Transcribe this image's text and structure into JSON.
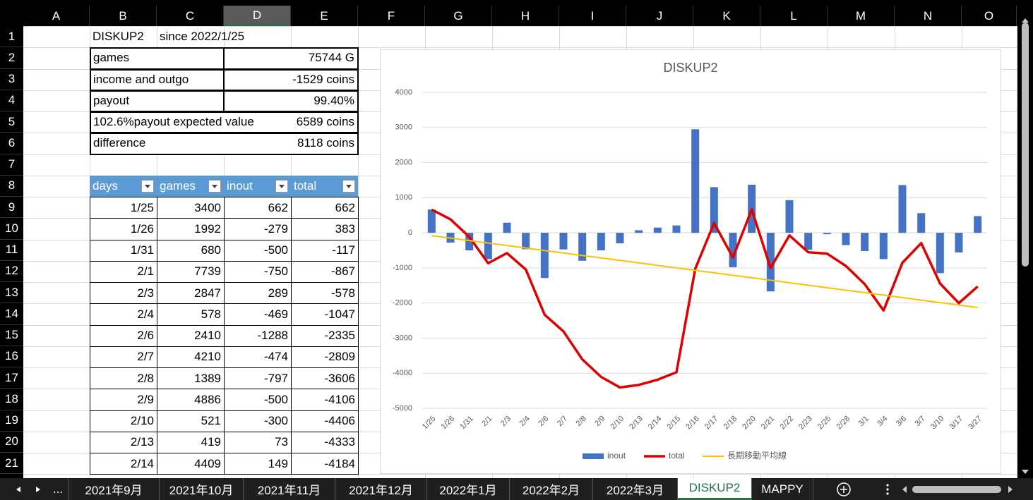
{
  "sheet": {
    "columns": [
      "A",
      "B",
      "C",
      "D",
      "E",
      "F",
      "G",
      "H",
      "I",
      "J",
      "K",
      "L",
      "M",
      "N",
      "O"
    ],
    "selected_column": 3,
    "rows": [
      1,
      2,
      3,
      4,
      5,
      6,
      7,
      8,
      9,
      10,
      11,
      12,
      13,
      14,
      15,
      16,
      17,
      18,
      19,
      20,
      21
    ],
    "header": {
      "title": "DISKUP2",
      "since": "since 2022/1/25"
    },
    "summary": [
      [
        "games",
        "75744 G"
      ],
      [
        "income and outgo",
        "-1529 coins"
      ],
      [
        "payout",
        "99.40%"
      ],
      [
        "102.6%payout expected value",
        "6589 coins"
      ],
      [
        "difference",
        "8118 coins"
      ]
    ],
    "table": {
      "headers": [
        "days",
        "games",
        "inout",
        "total"
      ],
      "rows": [
        [
          "1/25",
          3400,
          662,
          662
        ],
        [
          "1/26",
          1992,
          -279,
          383
        ],
        [
          "1/31",
          680,
          -500,
          -117
        ],
        [
          "2/1",
          7739,
          -750,
          -867
        ],
        [
          "2/3",
          2847,
          289,
          -578
        ],
        [
          "2/4",
          578,
          -469,
          -1047
        ],
        [
          "2/6",
          2410,
          -1288,
          -2335
        ],
        [
          "2/7",
          4210,
          -474,
          -2809
        ],
        [
          "2/8",
          1389,
          -797,
          -3606
        ],
        [
          "2/9",
          4886,
          -500,
          -4106
        ],
        [
          "2/10",
          521,
          -300,
          -4406
        ],
        [
          "2/13",
          419,
          73,
          -4333
        ],
        [
          "2/14",
          4409,
          149,
          -4184
        ]
      ]
    }
  },
  "tabs": [
    "...",
    "2021年9月",
    "2021年10月",
    "2021年11月",
    "2021年12月",
    "2022年1月",
    "2022年2月",
    "2022年3月",
    "DISKUP2",
    "MAPPY"
  ],
  "active_tab": 8,
  "chart_data": {
    "type": "combo",
    "title": "DISKUP2",
    "categories": [
      "1/25",
      "1/26",
      "1/31",
      "2/1",
      "2/3",
      "2/4",
      "2/6",
      "2/7",
      "2/8",
      "2/9",
      "2/10",
      "2/13",
      "2/14",
      "2/15",
      "2/16",
      "2/17",
      "2/18",
      "2/20",
      "2/21",
      "2/22",
      "2/23",
      "2/25",
      "2/28",
      "3/1",
      "3/4",
      "3/6",
      "3/7",
      "3/10",
      "3/17",
      "3/27"
    ],
    "series": [
      {
        "name": "inout",
        "type": "bar",
        "color": "#4472c4",
        "values": [
          662,
          -279,
          -500,
          -750,
          289,
          -469,
          -1288,
          -474,
          -797,
          -500,
          -300,
          73,
          149,
          210,
          2950,
          1300,
          -980,
          1370,
          -1670,
          930,
          -480,
          -40,
          -350,
          -520,
          -750,
          1360,
          560,
          -1150,
          -560,
          475
        ]
      },
      {
        "name": "total",
        "type": "line",
        "color": "#e00000",
        "values": [
          662,
          383,
          -117,
          -867,
          -578,
          -1047,
          -2335,
          -2809,
          -3606,
          -4106,
          -4406,
          -4333,
          -4184,
          -3974,
          -1024,
          276,
          -704,
          666,
          -1004,
          -74,
          -554,
          -594,
          -944,
          -1464,
          -2214,
          -854,
          -294,
          -1444,
          -2004,
          -1529
        ]
      },
      {
        "name": "長期移動平均線",
        "type": "line",
        "color": "#ffc000",
        "values": [
          -80,
          -151,
          -221,
          -292,
          -363,
          -433,
          -504,
          -575,
          -645,
          -716,
          -787,
          -857,
          -928,
          -999,
          -1070,
          -1140,
          -1211,
          -1282,
          -1352,
          -1423,
          -1494,
          -1564,
          -1635,
          -1706,
          -1776,
          -1847,
          -1918,
          -1988,
          -2059,
          -2130
        ]
      }
    ],
    "ylim": [
      -5000,
      4000
    ],
    "yticks": [
      4000,
      3000,
      2000,
      1000,
      0,
      -1000,
      -2000,
      -3000,
      -4000,
      -5000
    ],
    "grid": true,
    "legend": "bottom"
  }
}
